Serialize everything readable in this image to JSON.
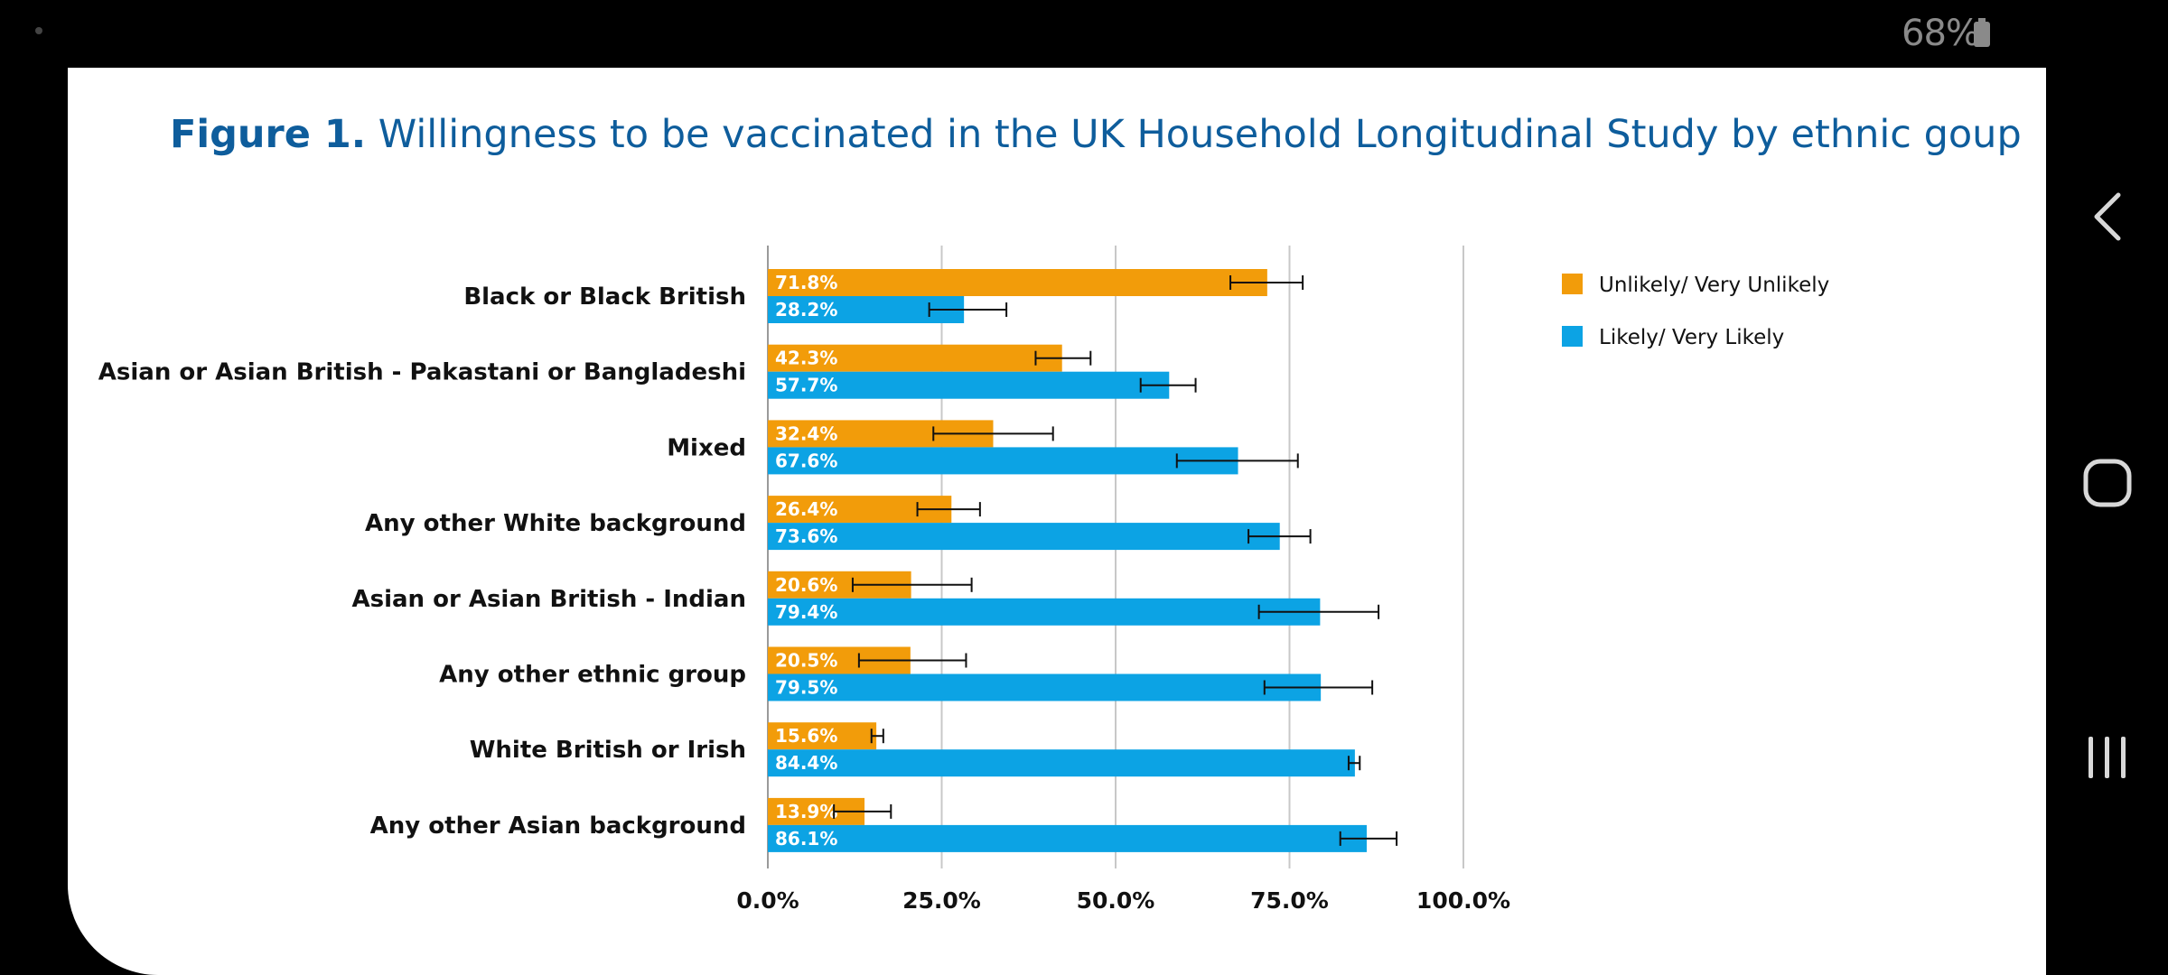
{
  "status_bar": {
    "battery": "68%"
  },
  "nav": {
    "back": "back-icon",
    "home": "home-icon",
    "recents": "recents-icon"
  },
  "colors": {
    "orange": "#F29C0A",
    "blue": "#0CA3E4",
    "title": "#0E5D9C",
    "grid": "#c8c8c8"
  },
  "chart_data": {
    "type": "bar",
    "orientation": "horizontal",
    "title_bold": "Figure 1.",
    "title_rest": " Willingness to be vaccinated in the UK Household Longitudinal Study by ethnic goup",
    "categories": [
      "Black or Black British",
      "Asian or Asian British - Pakastani or Bangladeshi",
      "Mixed",
      "Any other White background",
      "Asian or Asian British - Indian",
      "Any other ethnic group",
      "White British or Irish",
      "Any other Asian background"
    ],
    "series": [
      {
        "name": "Unlikely/ Very Unlikely",
        "color": "#F29C0A",
        "values": [
          71.8,
          42.3,
          32.4,
          26.4,
          20.6,
          20.5,
          15.6,
          13.9
        ],
        "labels": [
          "71.8%",
          "42.3%",
          "32.4%",
          "26.4%",
          "20.6%",
          "20.5%",
          "15.6%",
          "13.9%"
        ],
        "ci_low": [
          66.5,
          38.5,
          23.8,
          21.5,
          12.2,
          13.1,
          14.9,
          9.5
        ],
        "ci_high": [
          76.9,
          46.4,
          41.0,
          30.5,
          29.3,
          28.5,
          16.6,
          17.7
        ]
      },
      {
        "name": "Likely/ Very Likely",
        "color": "#0CA3E4",
        "values": [
          28.2,
          57.7,
          67.6,
          73.6,
          79.4,
          79.5,
          84.4,
          86.1
        ],
        "labels": [
          "28.2%",
          "57.7%",
          "67.6%",
          "73.6%",
          "79.4%",
          "79.5%",
          "84.4%",
          "86.1%"
        ],
        "ci_low": [
          23.2,
          53.6,
          58.8,
          69.1,
          70.6,
          71.4,
          83.5,
          82.3
        ],
        "ci_high": [
          34.3,
          61.5,
          76.2,
          78.0,
          87.8,
          86.9,
          85.1,
          90.4
        ]
      }
    ],
    "x_ticks": [
      "0.0%",
      "25.0%",
      "50.0%",
      "75.0%",
      "100.0%"
    ],
    "x_tick_values": [
      0,
      25,
      50,
      75,
      100
    ],
    "xlim": [
      0,
      100
    ],
    "grid": true,
    "legend": {
      "position": "top-right"
    }
  }
}
